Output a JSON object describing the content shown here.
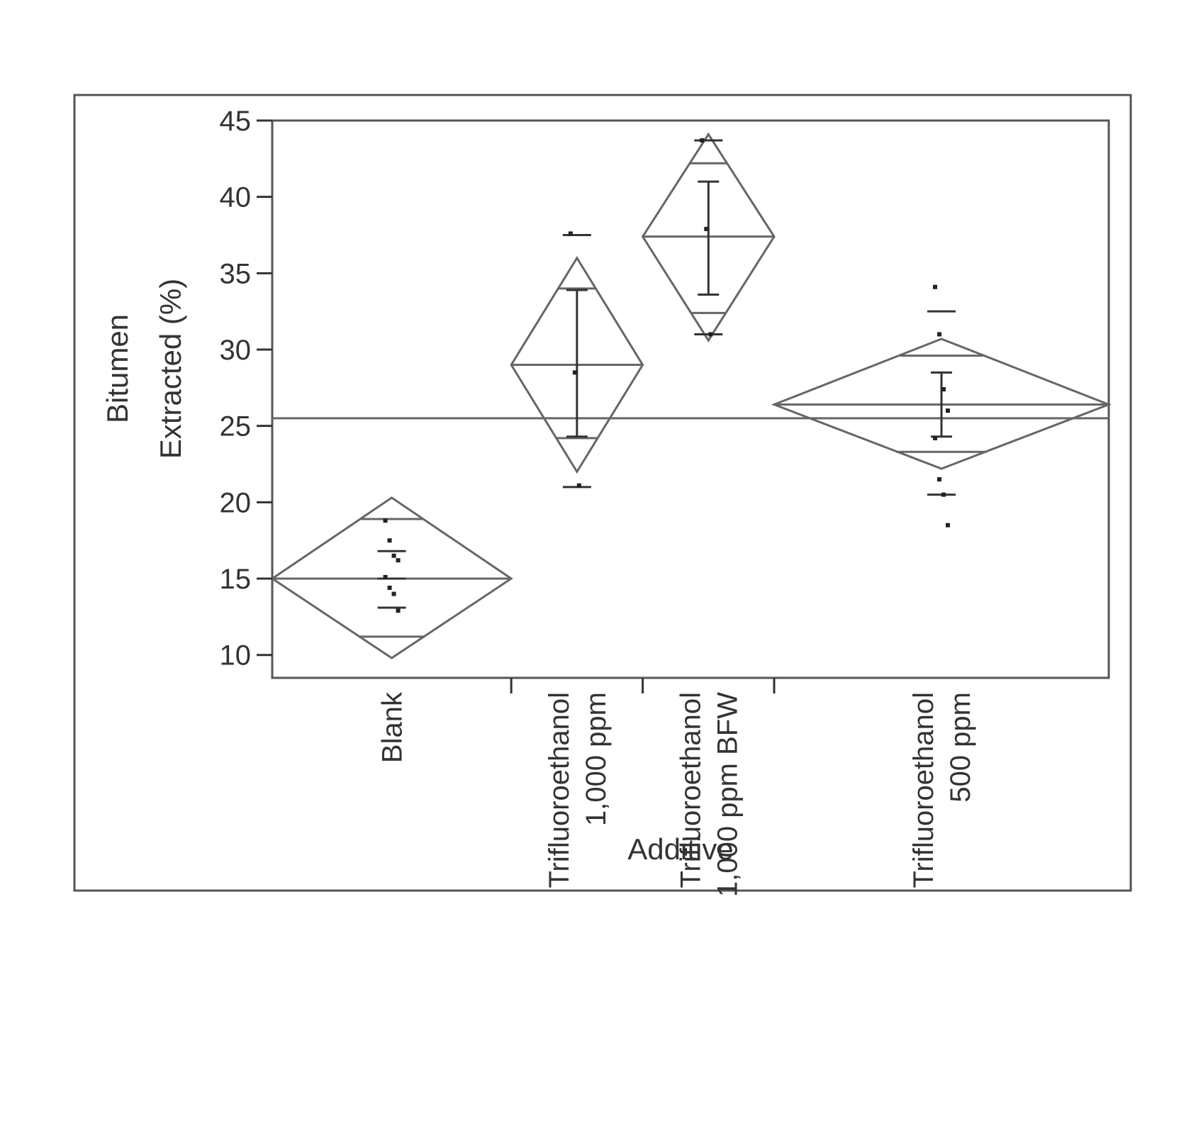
{
  "chart_data": {
    "type": "diamond",
    "title": "",
    "xlabel": "Additive",
    "ylabel_lines": [
      "Bitumen",
      "Extracted (%)"
    ],
    "ylim": [
      8.5,
      45
    ],
    "yticks": [
      10,
      15,
      20,
      25,
      30,
      35,
      40,
      45
    ],
    "grand_mean": 25.5,
    "categories": [
      {
        "label_lines": [
          "Blank"
        ],
        "x_start": 0,
        "x_end": 1.0
      },
      {
        "label_lines": [
          "Trifluoroethanol",
          "1,000 ppm"
        ],
        "x_start": 1.0,
        "x_end": 1.55
      },
      {
        "label_lines": [
          "Trifluoroethanol",
          "1,000 ppm BFW"
        ],
        "x_start": 1.55,
        "x_end": 2.1
      },
      {
        "label_lines": [
          "Trifluoroethanol",
          "500 ppm"
        ],
        "x_start": 2.1,
        "x_end": 3.5
      }
    ],
    "series": [
      {
        "group": "Blank",
        "mean": 15.0,
        "ci": [
          9.8,
          20.3
        ],
        "overlap": [
          11.2,
          18.9
        ],
        "points": [
          18.8,
          17.5,
          16.5,
          16.2,
          15.1,
          14.4,
          14.0,
          12.9
        ],
        "error_bar": null,
        "quantile_ticks": [
          16.8,
          15.0,
          13.1
        ]
      },
      {
        "group": "Trifluoroethanol 1,000 ppm",
        "mean": 29.0,
        "ci": [
          22.0,
          36.0
        ],
        "overlap": [
          24.2,
          34.0
        ],
        "points": [
          37.6,
          28.5,
          21.1
        ],
        "error_bar": [
          24.3,
          33.9
        ],
        "quantile_ticks": [
          37.5,
          21.0
        ]
      },
      {
        "group": "Trifluoroethanol 1,000 ppm BFW",
        "mean": 37.4,
        "ci": [
          30.6,
          44.1
        ],
        "overlap": [
          32.4,
          42.2
        ],
        "points": [
          43.7,
          37.9,
          31.0
        ],
        "error_bar": [
          33.6,
          41.0
        ],
        "quantile_ticks": [
          43.7,
          31.0
        ]
      },
      {
        "group": "Trifluoroethanol 500 ppm",
        "mean": 26.4,
        "ci": [
          22.2,
          30.7
        ],
        "overlap": [
          23.3,
          29.6
        ],
        "points": [
          34.1,
          31.0,
          27.4,
          26.0,
          24.2,
          21.5,
          20.5,
          18.5
        ],
        "error_bar": [
          24.3,
          28.5
        ],
        "quantile_ticks": [
          32.5,
          20.5
        ]
      }
    ]
  }
}
